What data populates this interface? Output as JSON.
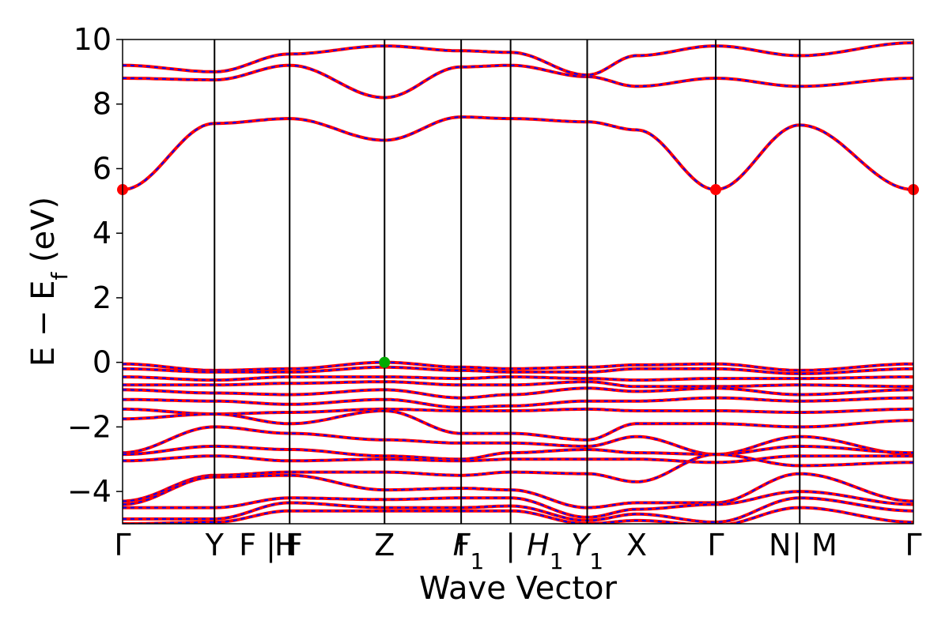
{
  "chart_data": {
    "type": "line",
    "title": "",
    "xlabel": "Wave Vector",
    "ylabel": "E − E",
    "ylabel_sub": "f",
    "ylabel_unit": " (eV)",
    "ylim": [
      -5,
      10
    ],
    "yticks": [
      -4,
      -2,
      0,
      2,
      4,
      6,
      8,
      10
    ],
    "ytick_labels": [
      "−4",
      "−2",
      "0",
      "2",
      "4",
      "6",
      "8",
      "10"
    ],
    "xlim": [
      0,
      16
    ],
    "kpath": [
      {
        "label": "Γ",
        "x": 0
      },
      {
        "label": "Y",
        "x": 1.86
      },
      {
        "label": "F | F",
        "x": 3.0
      },
      {
        "label": "H",
        "x": 3.3
      },
      {
        "label": "Z",
        "x": 5.3
      },
      {
        "label": "I",
        "x": 6.85
      },
      {
        "label": "F",
        "sub": "1",
        "x": 7.0
      },
      {
        "label": "|",
        "x": 7.85
      },
      {
        "label": "H",
        "sub": "1",
        "x": 8.55
      },
      {
        "label": "Y",
        "sub": "1",
        "x": 9.4
      },
      {
        "label": "X",
        "x": 10.4
      },
      {
        "label": "Γ",
        "x": 12.0
      },
      {
        "label": "N",
        "x": 13.3
      },
      {
        "label": "| M",
        "x": 14.0
      },
      {
        "label": "Γ",
        "x": 16.0
      }
    ],
    "vlines": [
      1.86,
      3.38,
      5.3,
      6.85,
      7.85,
      9.4,
      12.0,
      13.7
    ],
    "series": [
      {
        "name": "",
        "color": "#ff0000",
        "style": "solid",
        "values_desc": "band structure"
      },
      {
        "name": "",
        "color": "#0000ff",
        "style": "dashed",
        "values_desc": "band structure"
      }
    ],
    "markers": [
      {
        "x": 0,
        "y": 5.35,
        "color": "#ff0000"
      },
      {
        "x": 12.0,
        "y": 5.35,
        "color": "#ff0000"
      },
      {
        "x": 16.0,
        "y": 5.35,
        "color": "#ff0000"
      },
      {
        "x": 5.3,
        "y": 0.0,
        "color": "#00aa00"
      }
    ],
    "grid": false,
    "legend": "none"
  }
}
